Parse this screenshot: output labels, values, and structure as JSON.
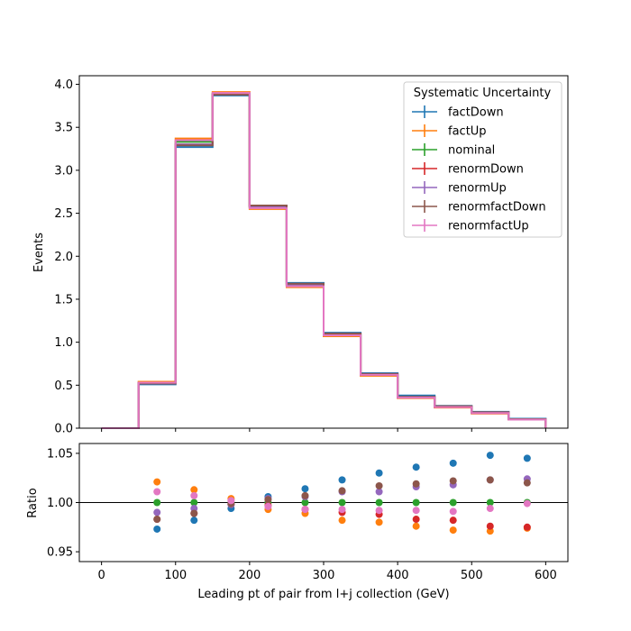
{
  "chart_data": {
    "type": "step-histogram-with-ratio",
    "xlabel": "Leading pt of pair from l+j collection (GeV)",
    "xlim": [
      -30,
      630
    ],
    "xticks": [
      0,
      100,
      200,
      300,
      400,
      500,
      600
    ],
    "bin_edges": [
      0,
      50,
      100,
      150,
      200,
      250,
      300,
      350,
      400,
      450,
      500,
      550,
      600
    ],
    "ratio_x": [
      75,
      125,
      175,
      225,
      275,
      325,
      375,
      425,
      475,
      525,
      575
    ],
    "top": {
      "ylabel": "Events",
      "ylim": [
        0,
        4.1
      ],
      "yticks": [
        0.0,
        0.5,
        1.0,
        1.5,
        2.0,
        2.5,
        3.0,
        3.5,
        4.0
      ]
    },
    "bottom": {
      "ylabel": "Ratio",
      "ylim": [
        0.94,
        1.06
      ],
      "yticks": [
        0.95,
        1.0,
        1.05
      ],
      "reference_line": 1.0
    },
    "legend": {
      "title": "Systematic Uncertainty",
      "placement": "top-right"
    },
    "series": [
      {
        "name": "factDown",
        "color": "#1f77b4",
        "values": [
          0.0,
          0.51,
          3.27,
          3.87,
          2.59,
          1.69,
          1.11,
          0.64,
          0.38,
          0.26,
          0.19,
          0.11
        ],
        "ratio": [
          0.973,
          0.982,
          0.994,
          1.006,
          1.014,
          1.023,
          1.03,
          1.036,
          1.04,
          1.048,
          1.045
        ]
      },
      {
        "name": "factUp",
        "color": "#ff7f0e",
        "values": [
          0.0,
          0.54,
          3.37,
          3.91,
          2.55,
          1.64,
          1.07,
          0.61,
          0.35,
          0.24,
          0.17,
          0.1
        ],
        "ratio": [
          1.021,
          1.013,
          1.004,
          0.993,
          0.989,
          0.982,
          0.98,
          0.976,
          0.972,
          0.971,
          0.974
        ]
      },
      {
        "name": "nominal",
        "color": "#2ca02c",
        "values": [
          0.0,
          0.53,
          3.33,
          3.89,
          2.57,
          1.66,
          1.09,
          0.62,
          0.36,
          0.25,
          0.18,
          0.105
        ],
        "ratio": [
          1.0,
          1.0,
          1.0,
          1.0,
          1.0,
          1.0,
          1.0,
          1.0,
          1.0,
          1.0,
          1.0
        ]
      },
      {
        "name": "renormDown",
        "color": "#d62728",
        "values": [
          0.0,
          0.52,
          3.3,
          3.88,
          2.58,
          1.67,
          1.09,
          0.62,
          0.355,
          0.245,
          0.175,
          0.1
        ],
        "ratio": [
          0.983,
          0.989,
          0.998,
          0.997,
          0.993,
          0.99,
          0.988,
          0.983,
          0.982,
          0.976,
          0.975
        ]
      },
      {
        "name": "renormUp",
        "color": "#9467bd",
        "values": [
          0.0,
          0.52,
          3.3,
          3.89,
          2.58,
          1.67,
          1.1,
          0.63,
          0.365,
          0.25,
          0.185,
          0.105
        ],
        "ratio": [
          0.99,
          0.994,
          0.998,
          1.004,
          1.006,
          1.011,
          1.011,
          1.016,
          1.018,
          1.023,
          1.024
        ]
      },
      {
        "name": "renormfactDown",
        "color": "#8c564b",
        "values": [
          0.0,
          0.52,
          3.29,
          3.88,
          2.59,
          1.68,
          1.1,
          0.63,
          0.365,
          0.255,
          0.185,
          0.105
        ],
        "ratio": [
          0.983,
          0.989,
          0.999,
          1.003,
          1.007,
          1.012,
          1.017,
          1.019,
          1.022,
          1.023,
          1.02
        ]
      },
      {
        "name": "renormfactUp",
        "color": "#e377c2",
        "values": [
          0.0,
          0.53,
          3.35,
          3.9,
          2.56,
          1.65,
          1.08,
          0.62,
          0.355,
          0.245,
          0.175,
          0.1
        ],
        "ratio": [
          1.011,
          1.007,
          1.002,
          0.996,
          0.993,
          0.993,
          0.992,
          0.992,
          0.991,
          0.994,
          0.999
        ]
      }
    ]
  }
}
